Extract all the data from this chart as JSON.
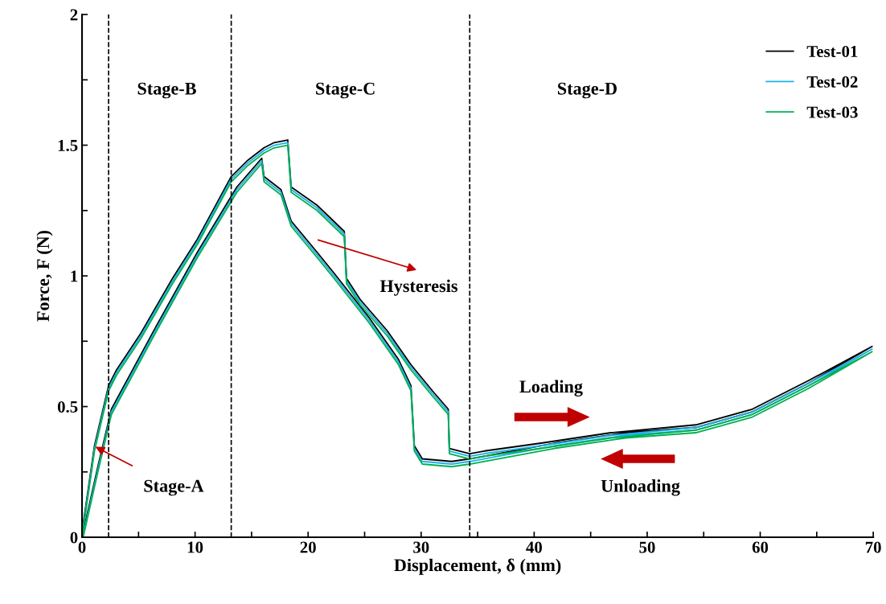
{
  "chart_data": {
    "type": "line",
    "xlabel": "Displacement, δ (mm)",
    "ylabel": "Force, F (N)",
    "xlim": [
      0,
      70
    ],
    "ylim": [
      0,
      2
    ],
    "xticks": [
      0,
      {
        "value": 5,
        "label": null
      },
      10,
      {
        "value": 15,
        "label": null
      },
      20,
      {
        "value": 25,
        "label": null
      },
      30,
      {
        "value": 35,
        "label": null
      },
      40,
      {
        "value": 45,
        "label": null
      },
      50,
      {
        "value": 55,
        "label": null
      },
      60,
      {
        "value": 65,
        "label": null
      },
      70
    ],
    "yticks": [
      0,
      {
        "value": 0.25,
        "label": null
      },
      0.5,
      {
        "value": 0.75,
        "label": null
      },
      1,
      {
        "value": 1.25,
        "label": null
      },
      1.5,
      {
        "value": 1.75,
        "label": null
      },
      2
    ],
    "grid": false,
    "legend": "top right",
    "marker": "none",
    "line_style": "solid",
    "x": [
      0,
      1.1,
      2.35,
      3.05,
      5.2,
      8.0,
      10.2,
      13.2,
      14.6,
      16.1,
      17.0,
      18.2,
      18.5,
      20.8,
      23.2,
      23.4,
      24.6,
      27.0,
      29.1,
      31.0,
      32.4,
      32.5,
      34.3,
      35.6,
      40.6,
      46.8,
      54.3,
      59.3,
      64.3,
      69.9,
      64.3,
      59.3,
      54.3,
      48.1,
      41.8,
      34.3,
      32.7,
      30.1,
      29.4,
      29.1,
      28.0,
      25.4,
      22.3,
      20.8,
      18.5,
      17.6,
      16.1,
      15.9,
      13.7,
      10.2,
      6.6,
      2.6,
      1.4,
      0.1
    ],
    "series": [
      {
        "name": "Test-01",
        "color": "#000000",
        "values": [
          0.02,
          0.35,
          0.58,
          0.64,
          0.78,
          0.99,
          1.14,
          1.38,
          1.44,
          1.49,
          1.51,
          1.52,
          1.34,
          1.27,
          1.17,
          0.99,
          0.91,
          0.79,
          0.66,
          0.56,
          0.49,
          0.34,
          0.32,
          0.33,
          0.36,
          0.4,
          0.43,
          0.49,
          0.6,
          0.73,
          0.59,
          0.48,
          0.42,
          0.4,
          0.36,
          0.3,
          0.29,
          0.3,
          0.35,
          0.58,
          0.68,
          0.84,
          1.01,
          1.09,
          1.21,
          1.33,
          1.38,
          1.45,
          1.34,
          1.09,
          0.81,
          0.49,
          0.27,
          0.02
        ]
      },
      {
        "name": "Test-02",
        "color": "#1ab0e8",
        "values": [
          0.01,
          0.34,
          0.57,
          0.63,
          0.77,
          0.98,
          1.13,
          1.37,
          1.43,
          1.48,
          1.5,
          1.51,
          1.33,
          1.26,
          1.16,
          0.98,
          0.9,
          0.78,
          0.65,
          0.55,
          0.48,
          0.33,
          0.31,
          0.32,
          0.35,
          0.39,
          0.42,
          0.48,
          0.59,
          0.72,
          0.58,
          0.47,
          0.41,
          0.39,
          0.35,
          0.29,
          0.28,
          0.29,
          0.34,
          0.57,
          0.67,
          0.83,
          1.0,
          1.08,
          1.2,
          1.32,
          1.37,
          1.44,
          1.33,
          1.08,
          0.8,
          0.48,
          0.26,
          0.01
        ]
      },
      {
        "name": "Test-03",
        "color": "#00b050",
        "values": [
          0,
          0.33,
          0.56,
          0.62,
          0.76,
          0.97,
          1.12,
          1.36,
          1.42,
          1.47,
          1.49,
          1.5,
          1.32,
          1.25,
          1.15,
          0.97,
          0.89,
          0.77,
          0.64,
          0.54,
          0.47,
          0.32,
          0.3,
          0.31,
          0.34,
          0.38,
          0.41,
          0.47,
          0.58,
          0.71,
          0.57,
          0.46,
          0.4,
          0.38,
          0.34,
          0.28,
          0.27,
          0.28,
          0.33,
          0.56,
          0.66,
          0.82,
          0.99,
          1.07,
          1.19,
          1.31,
          1.36,
          1.43,
          1.32,
          1.07,
          0.79,
          0.47,
          0.25,
          0
        ]
      }
    ],
    "ref_lines": [
      {
        "axis": "x",
        "value": 2.35,
        "color": "#000000",
        "line_style": "dashed"
      },
      {
        "axis": "x",
        "value": 13.2,
        "color": "#000000",
        "line_style": "dashed"
      },
      {
        "axis": "x",
        "value": 34.3,
        "color": "#000000",
        "line_style": "dashed"
      }
    ],
    "annotations": [
      {
        "text": "Stage-A",
        "x": 1.0,
        "y": 0.35
      },
      "Stage-B",
      "Stage-C",
      "Stage-D",
      "Hysteresis",
      "Loading",
      "Unloading"
    ]
  }
}
